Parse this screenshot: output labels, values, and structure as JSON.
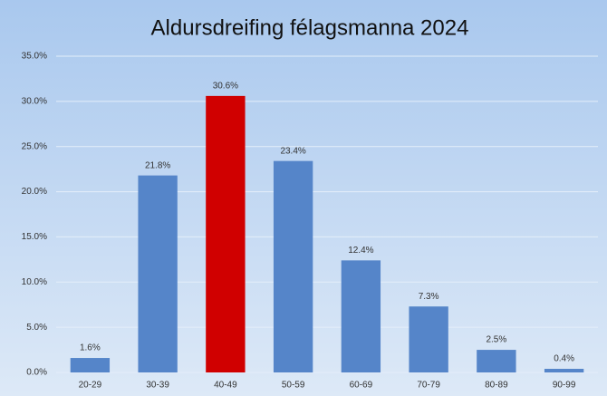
{
  "chart_data": {
    "type": "bar",
    "title": "Aldursdreifing félagsmanna 2024",
    "categories": [
      "20-29",
      "30-39",
      "40-49",
      "50-59",
      "60-69",
      "70-79",
      "80-89",
      "90-99"
    ],
    "values": [
      1.6,
      21.8,
      30.6,
      23.4,
      12.4,
      7.3,
      2.5,
      0.4
    ],
    "value_labels": [
      "1.6%",
      "21.8%",
      "30.6%",
      "23.4%",
      "12.4%",
      "7.3%",
      "2.5%",
      "0.4%"
    ],
    "colors": [
      "#5585c9",
      "#5585c9",
      "#d00000",
      "#5585c9",
      "#5585c9",
      "#5585c9",
      "#5585c9",
      "#5585c9"
    ],
    "ylim": [
      0,
      35
    ],
    "yticks": [
      {
        "value": 0,
        "label": "0.0%"
      },
      {
        "value": 5,
        "label": "5.0%"
      },
      {
        "value": 10,
        "label": "10.0%"
      },
      {
        "value": 15,
        "label": "15.0%"
      },
      {
        "value": 20,
        "label": "20.0%"
      },
      {
        "value": 25,
        "label": "25.0%"
      },
      {
        "value": 30,
        "label": "30.0%"
      },
      {
        "value": 35,
        "label": "35.0%"
      }
    ],
    "grid": true
  }
}
